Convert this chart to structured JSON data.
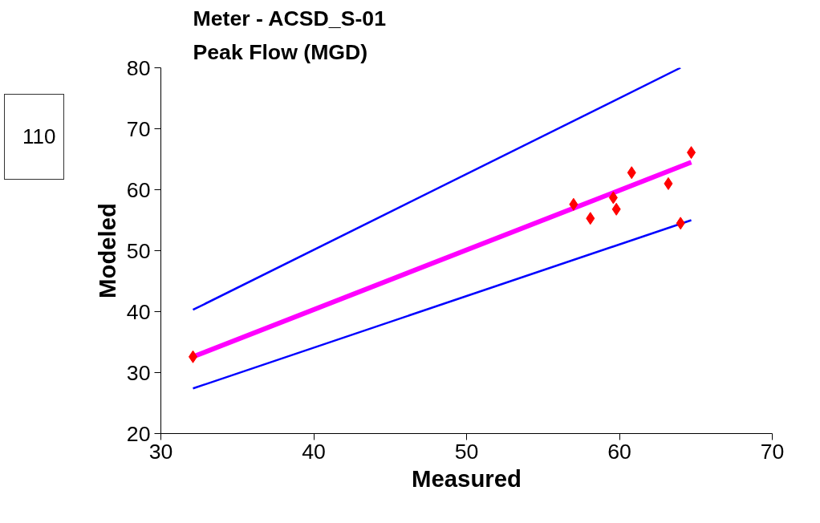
{
  "chart_data": {
    "type": "scatter",
    "title": "Meter - ACSD_S-01",
    "subtitle": "Peak Flow (MGD)",
    "xlabel": "Measured",
    "ylabel": "Modeled",
    "annotations": [
      "110"
    ],
    "xlim": [
      30,
      70
    ],
    "xticks": [
      30,
      40,
      50,
      60,
      70
    ],
    "ylim": [
      20,
      80
    ],
    "yticks": [
      20,
      30,
      40,
      50,
      60,
      70,
      80
    ],
    "grid": false,
    "series": [
      {
        "type": "line",
        "color": "#0000ff",
        "x": [
          32.1,
          64.0
        ],
        "values": [
          40.3,
          80.0
        ]
      },
      {
        "type": "line",
        "color": "#0000ff",
        "x": [
          32.1,
          64.7
        ],
        "values": [
          27.4,
          55.0
        ]
      },
      {
        "type": "line",
        "color": "#ff00ff",
        "x": [
          32.1,
          64.7
        ],
        "values": [
          32.6,
          64.5
        ]
      },
      {
        "type": "scatter",
        "marker": "diamond",
        "color": "#ff0000",
        "x": [
          32.1,
          57.0,
          58.1,
          59.6,
          59.8,
          60.8,
          63.2,
          64.0,
          64.7
        ],
        "values": [
          32.6,
          57.6,
          55.3,
          58.7,
          56.8,
          62.8,
          61.0,
          54.5,
          66.1
        ]
      }
    ]
  }
}
